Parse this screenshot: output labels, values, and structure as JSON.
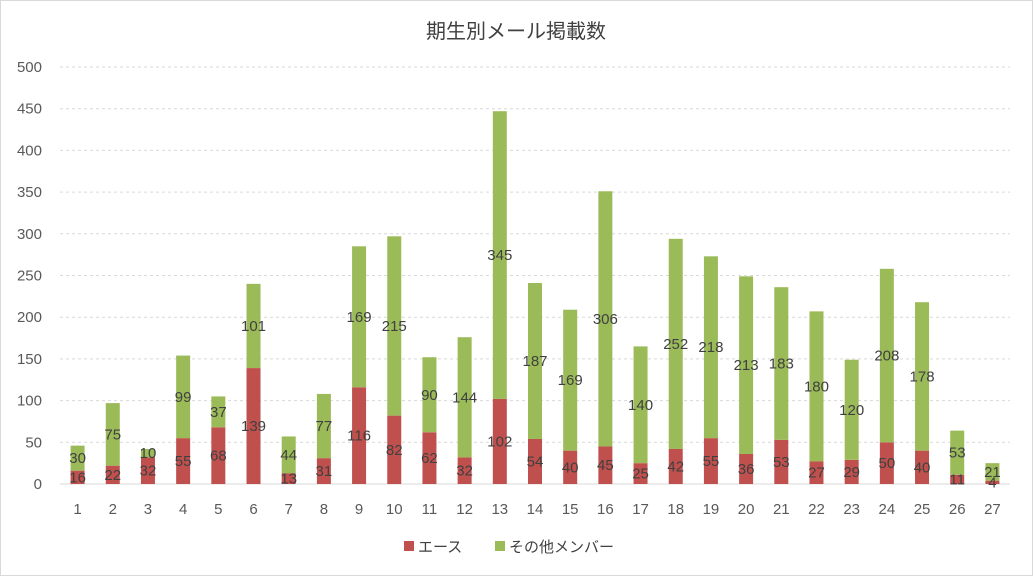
{
  "chart_data": {
    "type": "bar",
    "stacked": true,
    "title": "期生別メール掲載数",
    "xlabel": "",
    "ylabel": "",
    "ylim": [
      0,
      500
    ],
    "yticks": [
      0,
      50,
      100,
      150,
      200,
      250,
      300,
      350,
      400,
      450,
      500
    ],
    "grid": true,
    "legend": "bottom",
    "categories": [
      "1",
      "2",
      "3",
      "4",
      "5",
      "6",
      "7",
      "8",
      "9",
      "10",
      "11",
      "12",
      "13",
      "14",
      "15",
      "16",
      "17",
      "18",
      "19",
      "20",
      "21",
      "22",
      "23",
      "24",
      "25",
      "26",
      "27"
    ],
    "series": [
      {
        "name": "エース",
        "color": "#c0504d",
        "values": [
          16,
          22,
          32,
          55,
          68,
          139,
          13,
          31,
          116,
          82,
          62,
          32,
          102,
          54,
          40,
          45,
          25,
          42,
          55,
          36,
          53,
          27,
          29,
          50,
          40,
          11,
          4
        ]
      },
      {
        "name": "その他メンバー",
        "color": "#9bbb59",
        "values": [
          30,
          75,
          10,
          99,
          37,
          101,
          44,
          77,
          169,
          215,
          90,
          144,
          345,
          187,
          169,
          306,
          140,
          252,
          218,
          213,
          183,
          180,
          120,
          208,
          178,
          53,
          21
        ]
      }
    ]
  }
}
